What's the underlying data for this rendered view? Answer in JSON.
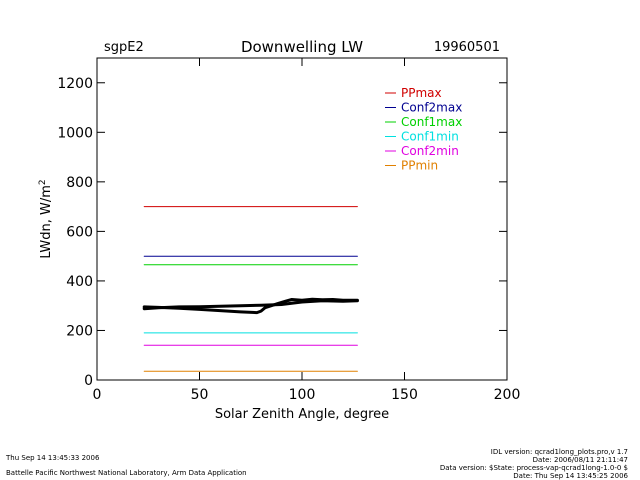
{
  "chart_data": {
    "type": "line",
    "title": "Downwelling LW",
    "site": "sgpE2",
    "date": "19960501",
    "xlabel": "Solar Zenith Angle, degree",
    "ylabel": "LWdn, W/m",
    "ylabel_sup": "2",
    "xlim": [
      0,
      200
    ],
    "ylim": [
      0,
      1300
    ],
    "x_ticks": [
      0,
      50,
      100,
      150,
      200
    ],
    "y_ticks": [
      0,
      200,
      400,
      600,
      800,
      1000,
      1200
    ],
    "grid": false,
    "legend_position": "top-right",
    "series": [
      {
        "name": "PPmax",
        "color": "#d00000",
        "x": [
          23,
          127
        ],
        "y": [
          700,
          700
        ]
      },
      {
        "name": "Conf2max",
        "color": "#000090",
        "x": [
          23,
          127
        ],
        "y": [
          500,
          500
        ]
      },
      {
        "name": "Conf1max",
        "color": "#00d000",
        "x": [
          23,
          127
        ],
        "y": [
          465,
          465
        ]
      },
      {
        "name": "Conf1min",
        "color": "#00e0e0",
        "x": [
          23,
          127
        ],
        "y": [
          190,
          190
        ]
      },
      {
        "name": "Conf2min",
        "color": "#e000e0",
        "x": [
          23,
          127
        ],
        "y": [
          140,
          140
        ]
      },
      {
        "name": "PPmin",
        "color": "#e08000",
        "x": [
          23,
          127
        ],
        "y": [
          35,
          35
        ]
      },
      {
        "name": "LWdn",
        "color": "#000000",
        "legend": false,
        "width": 3,
        "x": [
          23,
          30,
          40,
          50,
          60,
          70,
          78,
          80,
          82,
          85,
          88,
          92,
          95,
          100,
          105,
          110,
          115,
          120,
          127
        ],
        "y": [
          295,
          293,
          290,
          285,
          280,
          275,
          272,
          278,
          292,
          300,
          308,
          318,
          325,
          322,
          326,
          324,
          325,
          322,
          322
        ]
      },
      {
        "name": "LWdn-pm",
        "color": "#000000",
        "legend": false,
        "width": 3,
        "x": [
          23,
          30,
          40,
          50,
          60,
          70,
          80,
          90,
          100,
          110,
          120,
          127
        ],
        "y": [
          288,
          292,
          295,
          296,
          298,
          300,
          302,
          305,
          315,
          320,
          318,
          320
        ]
      }
    ]
  },
  "footer": {
    "left_line1": "Thu Sep 14 13:45:33 2006",
    "left_line2": "Battelle Pacific Northwest National Laboratory, Arm Data Application",
    "right_line1": "IDL version: qcrad1long_plots.pro,v 1.7",
    "right_line2": "Date: 2006/08/11 21:11:47",
    "right_line3": "Data version: $State: process-vap-qcrad1long-1.0-0 $",
    "right_line4": "Date: Thu Sep 14 13:45:25 2006"
  }
}
